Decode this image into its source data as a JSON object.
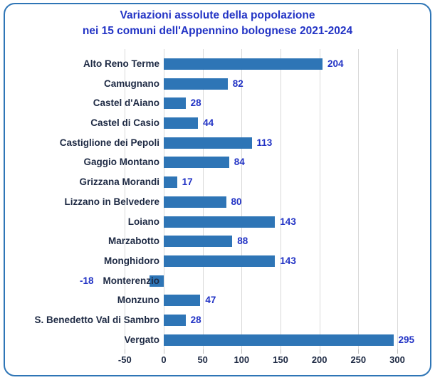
{
  "chart_data": {
    "type": "bar",
    "orientation": "horizontal",
    "title": "Variazioni assolute della popolazione",
    "subtitle": "nei 15 comuni dell'Appennino bolognese 2021-2024",
    "categories": [
      "Alto Reno Terme",
      "Camugnano",
      "Castel d'Aiano",
      "Castel di Casio",
      "Castiglione dei Pepoli",
      "Gaggio Montano",
      "Grizzana Morandi",
      "Lizzano in Belvedere",
      "Loiano",
      "Marzabotto",
      "Monghidoro",
      "Monterenzio",
      "Monzuno",
      "S. Benedetto Val di Sambro",
      "Vergato"
    ],
    "values": [
      204,
      82,
      28,
      44,
      113,
      84,
      17,
      80,
      143,
      88,
      143,
      -18,
      47,
      28,
      295
    ],
    "x_ticks": [
      -50,
      0,
      50,
      100,
      150,
      200,
      250,
      300
    ],
    "xlim": [
      -50,
      300
    ],
    "grid": "vertical-major",
    "legend": "none",
    "value_labels": "outside-end"
  },
  "style": {
    "bar_color": "#2E75B6",
    "frame_border_color": "#2E75B6",
    "title_color": "#2233C5",
    "value_label_color": "#2233C5",
    "category_label_color": "#1E2A44",
    "gridline_color": "#D9D9D9"
  }
}
